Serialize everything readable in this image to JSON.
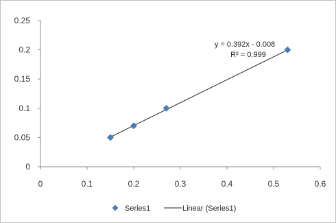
{
  "chart_data": {
    "type": "scatter",
    "title": "",
    "xlabel": "",
    "ylabel": "",
    "xlim": [
      0,
      0.6
    ],
    "ylim": [
      0,
      0.25
    ],
    "x_ticks": [
      0,
      0.1,
      0.2,
      0.3,
      0.4,
      0.5,
      0.6
    ],
    "x_tick_labels": [
      "0",
      "0.1",
      "0.2",
      "0.3",
      "0.4",
      "0.5",
      "0.6"
    ],
    "y_ticks": [
      0,
      0.05,
      0.1,
      0.15,
      0.2,
      0.25
    ],
    "y_tick_labels": [
      "0",
      "0.05",
      "0.1",
      "0.15",
      "0.2",
      "0.25"
    ],
    "grid": false,
    "series": [
      {
        "name": "Series1",
        "marker": "diamond",
        "color": "#4a7ebb",
        "points": [
          {
            "x": 0.15,
            "y": 0.05
          },
          {
            "x": 0.2,
            "y": 0.07
          },
          {
            "x": 0.27,
            "y": 0.1
          },
          {
            "x": 0.53,
            "y": 0.2
          }
        ]
      }
    ],
    "trendline": {
      "name": "Linear (Series1)",
      "type": "linear",
      "slope": 0.392,
      "intercept": -0.008,
      "x_range": [
        0.15,
        0.53
      ],
      "color": "#222222",
      "equation_label": "y = 0.392x - 0.008",
      "r2_label": "R² = 0.999"
    },
    "legend": {
      "placement": "bottom",
      "entries": [
        "Series1",
        "Linear (Series1)"
      ]
    }
  }
}
